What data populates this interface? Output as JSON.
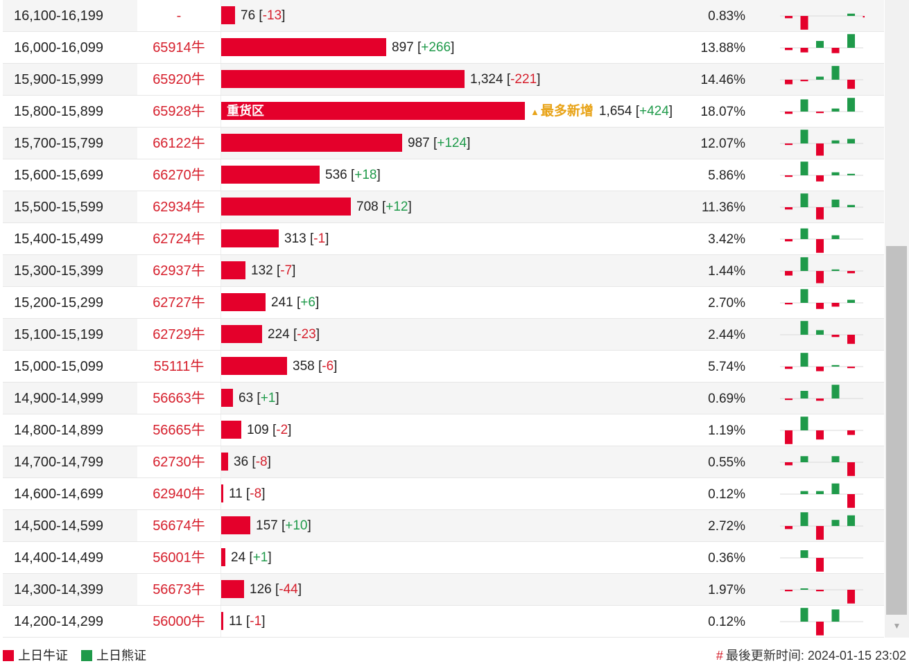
{
  "colors": {
    "bull": "#e4002b",
    "bear": "#1f9a4a",
    "highlight": "#e8a317"
  },
  "rows": [
    {
      "range": "16,100-16,199",
      "code": "-",
      "value": 76,
      "value_text": "76",
      "change_text": "-13",
      "change_dir": "neg",
      "pct": "0.83%",
      "spark": [
        -0.15,
        -0.9,
        0,
        0,
        0.15,
        -0.1
      ]
    },
    {
      "range": "16,000-16,099",
      "code": "65914牛",
      "value": 897,
      "value_text": "897",
      "change_text": "+266",
      "change_dir": "pos",
      "pct": "13.88%",
      "spark": [
        -0.15,
        -0.3,
        0.45,
        -0.35,
        0.9,
        0
      ]
    },
    {
      "range": "15,900-15,999",
      "code": "65920牛",
      "value": 1324,
      "value_text": "1,324",
      "change_text": "-221",
      "change_dir": "neg",
      "pct": "14.46%",
      "spark": [
        -0.3,
        -0.1,
        0.2,
        0.9,
        -0.6,
        0
      ]
    },
    {
      "range": "15,800-15,899",
      "code": "65928牛",
      "value": 1654,
      "value_text": "1,654",
      "change_text": "+424",
      "change_dir": "pos",
      "pct": "18.07%",
      "label": "重货区",
      "tag": "最多新增",
      "spark": [
        -0.15,
        0.8,
        -0.1,
        0.2,
        0.9,
        0
      ]
    },
    {
      "range": "15,700-15,799",
      "code": "66122牛",
      "value": 987,
      "value_text": "987",
      "change_text": "+124",
      "change_dir": "pos",
      "pct": "12.07%",
      "spark": [
        -0.1,
        0.9,
        -0.8,
        0.2,
        0.3,
        0
      ]
    },
    {
      "range": "15,600-15,699",
      "code": "66270牛",
      "value": 536,
      "value_text": "536",
      "change_text": "+18",
      "change_dir": "pos",
      "pct": "5.86%",
      "spark": [
        -0.1,
        0.9,
        -0.4,
        0.2,
        0.1,
        0
      ]
    },
    {
      "range": "15,500-15,599",
      "code": "62934牛",
      "value": 708,
      "value_text": "708",
      "change_text": "+12",
      "change_dir": "pos",
      "pct": "11.36%",
      "spark": [
        -0.15,
        0.9,
        -0.8,
        0.5,
        0.15,
        0
      ]
    },
    {
      "range": "15,400-15,499",
      "code": "62724牛",
      "value": 313,
      "value_text": "313",
      "change_text": "-1",
      "change_dir": "neg",
      "pct": "3.42%",
      "spark": [
        -0.15,
        0.7,
        -0.9,
        0.25,
        0,
        0
      ]
    },
    {
      "range": "15,300-15,399",
      "code": "62937牛",
      "value": 132,
      "value_text": "132",
      "change_text": "-7",
      "change_dir": "neg",
      "pct": "1.44%",
      "spark": [
        -0.3,
        0.9,
        -0.8,
        0.1,
        -0.15,
        0
      ]
    },
    {
      "range": "15,200-15,299",
      "code": "62727牛",
      "value": 241,
      "value_text": "241",
      "change_text": "+6",
      "change_dir": "pos",
      "pct": "2.70%",
      "spark": [
        -0.1,
        0.9,
        -0.4,
        -0.25,
        0.2,
        0
      ]
    },
    {
      "range": "15,100-15,199",
      "code": "62729牛",
      "value": 224,
      "value_text": "224",
      "change_text": "-23",
      "change_dir": "neg",
      "pct": "2.44%",
      "spark": [
        0,
        0.9,
        0.3,
        -0.15,
        -0.6,
        0
      ]
    },
    {
      "range": "15,000-15,099",
      "code": "55111牛",
      "value": 358,
      "value_text": "358",
      "change_text": "-6",
      "change_dir": "neg",
      "pct": "5.74%",
      "spark": [
        -0.15,
        0.9,
        -0.3,
        0.1,
        -0.1,
        0
      ]
    },
    {
      "range": "14,900-14,999",
      "code": "56663牛",
      "value": 63,
      "value_text": "63",
      "change_text": "+1",
      "change_dir": "pos",
      "pct": "0.69%",
      "spark": [
        -0.1,
        0.5,
        -0.15,
        0.9,
        0,
        0
      ]
    },
    {
      "range": "14,800-14,899",
      "code": "56665牛",
      "value": 109,
      "value_text": "109",
      "change_text": "-2",
      "change_dir": "neg",
      "pct": "1.19%",
      "spark": [
        -0.9,
        0.9,
        -0.6,
        0,
        -0.3,
        0
      ]
    },
    {
      "range": "14,700-14,799",
      "code": "62730牛",
      "value": 36,
      "value_text": "36",
      "change_text": "-8",
      "change_dir": "neg",
      "pct": "0.55%",
      "spark": [
        -0.2,
        0.4,
        0,
        0.4,
        -0.9,
        0
      ]
    },
    {
      "range": "14,600-14,699",
      "code": "62940牛",
      "value": 11,
      "value_text": "11",
      "change_text": "-8",
      "change_dir": "neg",
      "pct": "0.12%",
      "spark": [
        0,
        0.2,
        0.2,
        0.7,
        -0.9,
        0
      ]
    },
    {
      "range": "14,500-14,599",
      "code": "56674牛",
      "value": 157,
      "value_text": "157",
      "change_text": "+10",
      "change_dir": "pos",
      "pct": "2.72%",
      "spark": [
        -0.2,
        0.9,
        -0.9,
        0.4,
        0.7,
        0
      ]
    },
    {
      "range": "14,400-14,499",
      "code": "56001牛",
      "value": 24,
      "value_text": "24",
      "change_text": "+1",
      "change_dir": "pos",
      "pct": "0.36%",
      "spark": [
        0,
        0.5,
        -0.9,
        0,
        0,
        0
      ]
    },
    {
      "range": "14,300-14,399",
      "code": "56673牛",
      "value": 126,
      "value_text": "126",
      "change_text": "-44",
      "change_dir": "neg",
      "pct": "1.97%",
      "spark": [
        -0.1,
        0.05,
        -0.1,
        0,
        -0.9,
        0
      ]
    },
    {
      "range": "14,200-14,299",
      "code": "56000牛",
      "value": 11,
      "value_text": "11",
      "change_text": "-1",
      "change_dir": "neg",
      "pct": "0.12%",
      "spark": [
        0,
        0.9,
        -0.9,
        0.8,
        0,
        0
      ]
    }
  ],
  "legend": [
    {
      "label": "上日牛证",
      "color": "#e4002b"
    },
    {
      "label": "上日熊证",
      "color": "#1f9a4a"
    }
  ],
  "footer": {
    "hash": "#",
    "updated": "最後更新时间: 2024-01-15 23:02"
  }
}
